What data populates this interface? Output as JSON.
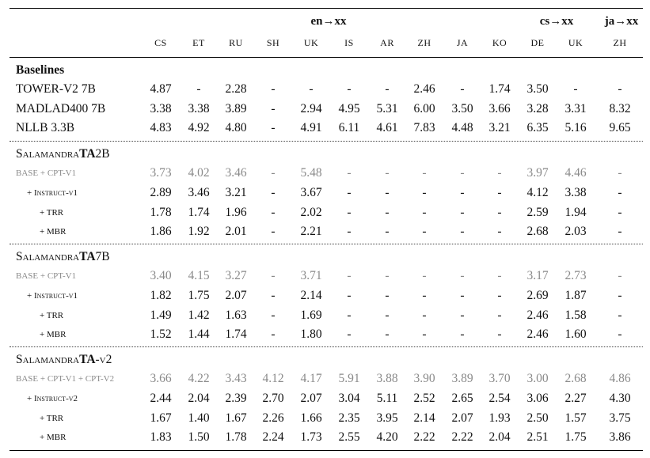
{
  "header": {
    "groups": [
      {
        "id": "en",
        "label": "en→xx"
      },
      {
        "id": "cs",
        "label": "cs→xx"
      },
      {
        "id": "ja",
        "label": "ja→xx"
      }
    ],
    "languages": [
      "CS",
      "ET",
      "RU",
      "SH",
      "UK",
      "IS",
      "AR",
      "ZH",
      "JA",
      "KO",
      "DE",
      "UK",
      "ZH"
    ]
  },
  "sections": [
    {
      "title": "Baselines",
      "rows": [
        {
          "label": "TOWER-V2 7B",
          "grey": false,
          "values": [
            "4.87",
            "-",
            "2.28",
            "-",
            "-",
            "-",
            "-",
            "2.46",
            "-",
            "1.74",
            "3.50",
            "-",
            "-"
          ]
        },
        {
          "label": "MADLAD400 7B",
          "grey": false,
          "values": [
            "3.38",
            "3.38",
            "3.89",
            "-",
            "2.94",
            "4.95",
            "5.31",
            "6.00",
            "3.50",
            "3.66",
            "3.28",
            "3.31",
            "8.32"
          ]
        },
        {
          "label": "NLLB 3.3B",
          "grey": false,
          "values": [
            "4.83",
            "4.92",
            "4.80",
            "-",
            "4.91",
            "6.11",
            "4.61",
            "7.83",
            "4.48",
            "3.21",
            "6.35",
            "5.16",
            "9.65"
          ]
        }
      ]
    },
    {
      "title_prefix": "Salamandra",
      "title_bold": "TA",
      "title_suffix": "2B",
      "rows": [
        {
          "label": "BASE + CPT-V1",
          "grey": true,
          "values": [
            "3.73",
            "4.02",
            "3.46",
            "-",
            "5.48",
            "-",
            "-",
            "-",
            "-",
            "-",
            "3.97",
            "4.46",
            "-"
          ]
        },
        {
          "label": "+ Instruct-v1",
          "grey": false,
          "values": [
            "2.89",
            "3.46",
            "3.21",
            "-",
            "3.67",
            "-",
            "-",
            "-",
            "-",
            "-",
            "4.12",
            "3.38",
            "-"
          ]
        },
        {
          "label": "+ TRR",
          "grey": false,
          "values": [
            "1.78",
            "1.74",
            "1.96",
            "-",
            "2.02",
            "-",
            "-",
            "-",
            "-",
            "-",
            "2.59",
            "1.94",
            "-"
          ]
        },
        {
          "label": "+ MBR",
          "grey": false,
          "values": [
            "1.86",
            "1.92",
            "2.01",
            "-",
            "2.21",
            "-",
            "-",
            "-",
            "-",
            "-",
            "2.68",
            "2.03",
            "-"
          ]
        }
      ]
    },
    {
      "title_prefix": "Salamandra",
      "title_bold": "TA",
      "title_suffix": "7B",
      "rows": [
        {
          "label": "BASE + CPT-V1",
          "grey": true,
          "values": [
            "3.40",
            "4.15",
            "3.27",
            "-",
            "3.71",
            "-",
            "-",
            "-",
            "-",
            "-",
            "3.17",
            "2.73",
            "-"
          ]
        },
        {
          "label": "+ Instruct-v1",
          "grey": false,
          "values": [
            "1.82",
            "1.75",
            "2.07",
            "-",
            "2.14",
            "-",
            "-",
            "-",
            "-",
            "-",
            "2.69",
            "1.87",
            "-"
          ]
        },
        {
          "label": "+ TRR",
          "grey": false,
          "values": [
            "1.49",
            "1.42",
            "1.63",
            "-",
            "1.69",
            "-",
            "-",
            "-",
            "-",
            "-",
            "2.46",
            "1.58",
            "-"
          ]
        },
        {
          "label": "+ MBR",
          "grey": false,
          "values": [
            "1.52",
            "1.44",
            "1.74",
            "-",
            "1.80",
            "-",
            "-",
            "-",
            "-",
            "-",
            "2.46",
            "1.60",
            "-"
          ]
        }
      ]
    },
    {
      "title_prefix": "Salamandra",
      "title_bold": "TA",
      "title_suffix": "-v2",
      "rows": [
        {
          "label": "BASE + CPT-V1 + CPT-V2",
          "grey": true,
          "values": [
            "3.66",
            "4.22",
            "3.43",
            "4.12",
            "4.17",
            "5.91",
            "3.88",
            "3.90",
            "3.89",
            "3.70",
            "3.00",
            "2.68",
            "4.86"
          ]
        },
        {
          "label": "+ Instruct-v2",
          "grey": false,
          "values": [
            "2.44",
            "2.04",
            "2.39",
            "2.70",
            "2.07",
            "3.04",
            "5.11",
            "2.52",
            "2.65",
            "2.54",
            "3.06",
            "2.27",
            "4.30"
          ]
        },
        {
          "label": "+ TRR",
          "grey": false,
          "values": [
            "1.67",
            "1.40",
            "1.67",
            "2.26",
            "1.66",
            "2.35",
            "3.95",
            "2.14",
            "2.07",
            "1.93",
            "2.50",
            "1.57",
            "3.75"
          ]
        },
        {
          "label": "+ MBR",
          "grey": false,
          "values": [
            "1.83",
            "1.50",
            "1.78",
            "2.24",
            "1.73",
            "2.55",
            "4.20",
            "2.22",
            "2.22",
            "2.04",
            "2.51",
            "1.75",
            "3.86"
          ]
        }
      ]
    }
  ]
}
